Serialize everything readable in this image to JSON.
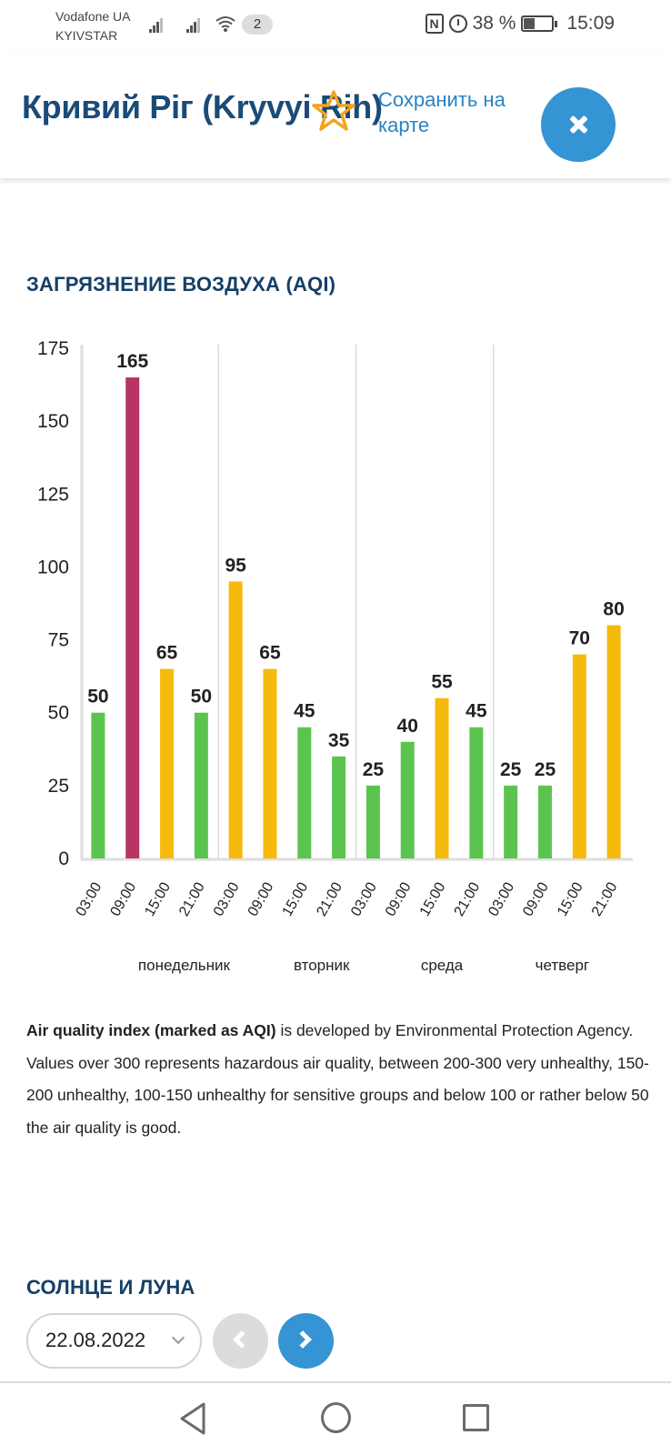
{
  "status_bar": {
    "carrier_1": "Vodafone UA",
    "carrier_2": "KYIVSTAR",
    "notification_count": "2",
    "battery_percent_label": "38 %",
    "battery_level": 0.38,
    "time": "15:09",
    "icons": [
      "signal-icon",
      "signal-icon",
      "wifi-icon",
      "nfc-icon",
      "alarm-icon",
      "battery-icon"
    ]
  },
  "header": {
    "city": "Кривий Ріг (Kryvyi Rih)",
    "save_label": "Сохранить на карте",
    "favorite_icon": "star-outline-icon",
    "close_icon": "close-icon"
  },
  "aqi_section": {
    "title": "ЗАГРЯЗНЕНИЕ ВОЗДУХА (AQI)",
    "description_bold": "Air quality index (marked as AQI)",
    "description_rest": " is developed by Environmental Protection Agency. Values over 300 represents hazardous air quality, between 200-300 very unhealthy, 150-200 unhealthy, 100-150 unhealthy for sensitive groups and below 100 or rather below 50 the air quality is good."
  },
  "chart_data": {
    "type": "bar",
    "title": "ЗАГРЯЗНЕНИЕ ВОЗДУХА (AQI)",
    "xlabel": "",
    "ylabel": "",
    "ylim": [
      0,
      175
    ],
    "yticks": [
      0,
      25,
      50,
      75,
      100,
      125,
      150,
      175
    ],
    "grid": false,
    "legend": "none",
    "categories": [
      "03:00",
      "09:00",
      "15:00",
      "21:00",
      "03:00",
      "09:00",
      "15:00",
      "21:00",
      "03:00",
      "09:00",
      "15:00",
      "21:00",
      "03:00",
      "09:00",
      "15:00",
      "21:00"
    ],
    "values": [
      50,
      165,
      65,
      50,
      95,
      65,
      45,
      35,
      25,
      40,
      55,
      45,
      25,
      25,
      70,
      80
    ],
    "colors": [
      "#5bc44f",
      "#b93465",
      "#f6ba0d",
      "#5bc44f",
      "#f6ba0d",
      "#f6ba0d",
      "#5bc44f",
      "#5bc44f",
      "#5bc44f",
      "#5bc44f",
      "#f6ba0d",
      "#5bc44f",
      "#5bc44f",
      "#5bc44f",
      "#f6ba0d",
      "#f6ba0d"
    ],
    "day_groups": [
      {
        "label": "понедельник",
        "start": 0,
        "end": 3
      },
      {
        "label": "вторник",
        "start": 4,
        "end": 7
      },
      {
        "label": "среда",
        "start": 8,
        "end": 11
      },
      {
        "label": "четверг",
        "start": 12,
        "end": 15
      }
    ],
    "day_label_positions": [
      3,
      7,
      10.5,
      14
    ],
    "color_scale": {
      "good": "#5bc44f",
      "moderate": "#f6ba0d",
      "unhealthy": "#b93465"
    }
  },
  "sun_moon_section": {
    "title": "СОЛНЦЕ И ЛУНА",
    "date_value": "22.08.2022",
    "prev_icon": "chevron-left-icon",
    "next_icon": "chevron-right-icon"
  },
  "nav_bar": {
    "icons": [
      "back-icon",
      "home-icon",
      "recent-apps-icon"
    ]
  }
}
